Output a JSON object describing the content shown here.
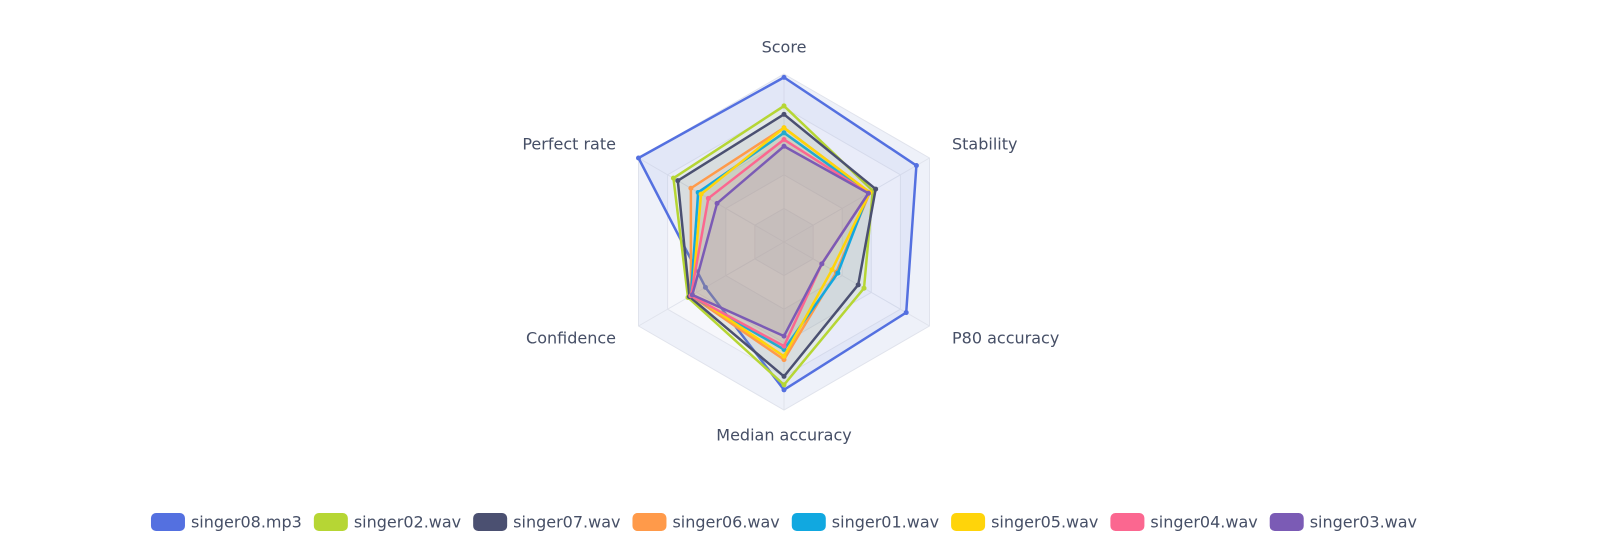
{
  "chart_data": {
    "type": "radar",
    "indicators": [
      "Score",
      "Stability",
      "P80 accuracy",
      "Median accuracy",
      "Confidence",
      "Perfect rate"
    ],
    "ylim": [
      0,
      100
    ],
    "series": [
      {
        "name": "singer08.mp3",
        "color": "#5470e0",
        "values": [
          98,
          91,
          84,
          88,
          54,
          100
        ]
      },
      {
        "name": "singer02.wav",
        "color": "#b6d634",
        "values": [
          81,
          61,
          55,
          85,
          66,
          76
        ]
      },
      {
        "name": "singer07.wav",
        "color": "#4b5071",
        "values": [
          76,
          63,
          51,
          80,
          65,
          73
        ]
      },
      {
        "name": "singer06.wav",
        "color": "#ff9a4a",
        "values": [
          68,
          59,
          36,
          70,
          64,
          64
        ]
      },
      {
        "name": "singer01.wav",
        "color": "#11a8e0",
        "values": [
          65,
          58,
          37,
          64,
          64,
          59
        ]
      },
      {
        "name": "singer05.wav",
        "color": "#ffd40a",
        "values": [
          68,
          59,
          33,
          68,
          63,
          57
        ]
      },
      {
        "name": "singer04.wav",
        "color": "#fb6790",
        "values": [
          61,
          58,
          26,
          62,
          64,
          52
        ]
      },
      {
        "name": "singer03.wav",
        "color": "#7b5bb5",
        "values": [
          57,
          58,
          26,
          56,
          63,
          46
        ]
      }
    ]
  }
}
